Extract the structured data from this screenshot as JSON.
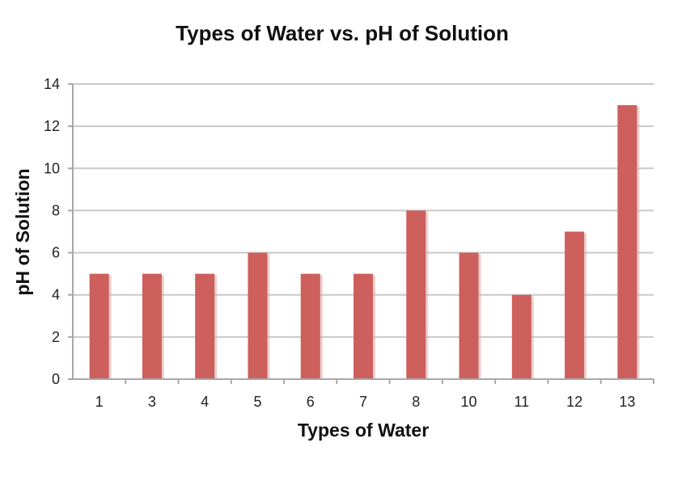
{
  "chart_data": {
    "type": "bar",
    "title": "Types of Water vs. pH of Solution",
    "xlabel": "Types of Water",
    "ylabel": "pH of Solution",
    "categories": [
      "1",
      "3",
      "4",
      "5",
      "6",
      "7",
      "8",
      "10",
      "11",
      "12",
      "13"
    ],
    "values": [
      5,
      5,
      5,
      6,
      5,
      5,
      8,
      6,
      4,
      7,
      13
    ],
    "ylim": [
      0,
      14
    ],
    "yticks": [
      0,
      2,
      4,
      6,
      8,
      10,
      12,
      14
    ],
    "grid": true,
    "legend": "none",
    "bar_color": "#cd5f5c"
  }
}
